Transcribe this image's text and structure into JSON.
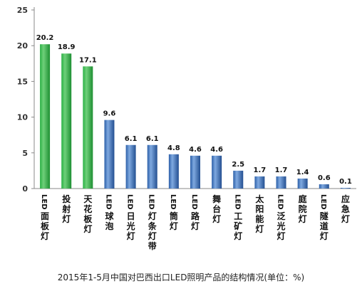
{
  "chart_data": {
    "type": "bar",
    "title": "",
    "xlabel": "",
    "ylabel": "",
    "ylim": [
      0,
      25
    ],
    "yticks": [
      0,
      5,
      10,
      15,
      20,
      25
    ],
    "grid": false,
    "legend": "none",
    "categories": [
      "LED面板灯",
      "投射灯",
      "天花板灯",
      "LED球泡",
      "LED日光灯",
      "LED灯条灯带",
      "LED筒灯",
      "LED路灯",
      "舞台灯",
      "LED工矿灯",
      "太阳能灯",
      "LED泛光灯",
      "庭院灯",
      "LED隧道灯",
      "应急灯"
    ],
    "values": [
      20.2,
      18.9,
      17.1,
      9.6,
      6.1,
      6.1,
      4.8,
      4.6,
      4.6,
      2.5,
      1.7,
      1.7,
      1.4,
      0.6,
      0.1
    ],
    "data_labels": [
      "20.2",
      "18.9",
      "17.1",
      "9.6",
      "6.1",
      "6.1",
      "4.8",
      "4.6",
      "4.6",
      "2.5",
      "1.7",
      "1.7",
      "1.4",
      "0.6",
      "0.1"
    ],
    "bar_colors": [
      "green",
      "green",
      "green",
      "blue",
      "blue",
      "blue",
      "blue",
      "blue",
      "blue",
      "blue",
      "blue",
      "blue",
      "blue",
      "blue",
      "blue"
    ]
  },
  "colors": {
    "green_fill": "#22a63a",
    "green_light": "#6fd07a",
    "blue_fill": "#2e64b0",
    "blue_light": "#7fa9e0",
    "axis": "#888888"
  },
  "caption": "2015年1-5月中国对巴西出口LED照明产品的结构情况(单位：%)"
}
